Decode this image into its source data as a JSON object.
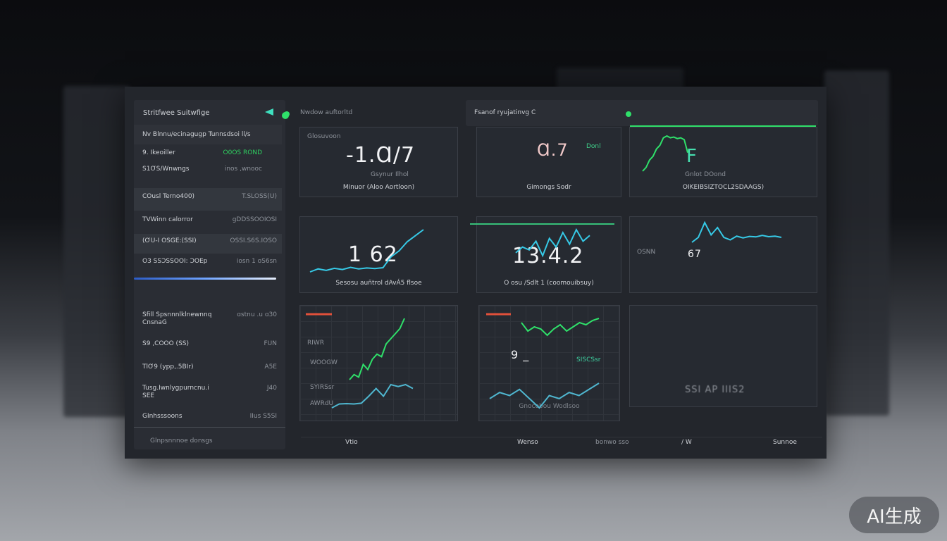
{
  "sidebar": {
    "title": "Stritfwee Suitwfige",
    "rows": [
      {
        "label": "Nv Blnnu/ecinagugp Tunnsdsoi ll/s",
        "value": ""
      },
      {
        "label": "9. Ikeoiller",
        "value": "O0OS ROND"
      },
      {
        "label": "S1ƠS/Wnwngs",
        "value": "inos ,wnooc"
      },
      {
        "label": "COusl Terno400)",
        "value": "T.SLOSS(U)"
      },
      {
        "label": "TVWinn calorror",
        "value": "gDDSSOOIOSI"
      },
      {
        "label": "(ƠU-I OSGE:(SSI)",
        "value": "OSSI.S6S.IOSO"
      },
      {
        "label": "O3 SSƆSSOOI: ƆOEp",
        "value": "iosn 1 oS6sn"
      },
      {
        "label": "Sfill Spsnnnlklnewnnq CnsnaG",
        "value": "ɑstnu .u  ɑ30"
      },
      {
        "label": "S9 ,COOO (SS)",
        "value": "FUN"
      },
      {
        "label": "TlƠ9 (ypp,.5BIr)",
        "value": "A5E"
      },
      {
        "label": "Tusg.Iwnlygpurncnu.i SEE",
        "value": "J40"
      },
      {
        "label": "GInhsssoons",
        "value": "IIus   S5SI"
      }
    ],
    "footer": "Glnpsnnnoe donsgs",
    "progress": 0.95
  },
  "header": {
    "left": "Nwdow auftorltd",
    "mid": "Fsanof ryujatinvg C"
  },
  "cards": [
    {
      "label": "Glosuvoon",
      "value": "-1.Ɑ/7",
      "sub": "Gsynur Ilhol",
      "caption": "Minuor (Aloo Aortloon)"
    },
    {
      "label": "",
      "value": "Ɑ.7",
      "tag": "Donl",
      "caption": "Gimongs Sodr"
    },
    {
      "label": "",
      "value": "F",
      "sub": "Gnlot DOond",
      "caption": "OIKEIBSIZTOCL2SDAAGS)"
    },
    {
      "label": "",
      "value": "1  62",
      "caption": "Sesosu auñtrol dAvÁ5 flsoe"
    },
    {
      "label": "",
      "value": "13.4.2",
      "caption": "O osu /Sdlt 1 (coomouibsuy)"
    },
    {
      "label": "OSNN",
      "value": "67",
      "caption": ""
    },
    {
      "label": "RIWR",
      "value": "",
      "labels": [
        "WOOGW",
        "SYIRSsr",
        "AWRdU"
      ]
    },
    {
      "label": "",
      "value": "9 _",
      "labels": [
        "SISCSsr"
      ],
      "caption": "Gnocobou Wodlsoo"
    },
    {
      "label": "",
      "value": "SSI AP  IIIS2"
    }
  ],
  "footer": [
    "Vtio",
    "Wenso",
    "bonwo  sso",
    "/ W",
    "Sunnoe"
  ],
  "watermark": "AI生成",
  "colors": {
    "accent_green": "#2fe06a",
    "accent_cyan": "#36c9e6",
    "accent_red": "#e0503a",
    "accent_blue": "#3f7ef0"
  },
  "trends": {
    "c3": [
      2,
      3,
      5,
      6,
      8,
      9,
      11,
      11.5,
      11,
      11.2,
      10.8,
      11,
      10.5,
      7
    ],
    "c4": [
      3,
      4,
      3.5,
      4.2,
      3.8,
      4.5,
      4,
      4.3,
      4.1,
      4.4,
      8,
      10,
      13,
      15,
      17
    ],
    "c5": [
      4,
      6,
      5,
      8,
      3,
      9,
      6,
      11,
      7,
      12,
      8,
      10
    ],
    "c6": [
      4,
      6,
      12,
      7,
      10,
      6,
      5,
      6.5,
      5.8,
      6.4,
      6.2,
      6.8,
      6.3,
      6.5,
      6
    ],
    "c7a": [
      2,
      3,
      2.5,
      5,
      4,
      6,
      7,
      6.5,
      9,
      10,
      11,
      12,
      14
    ],
    "c7b": [
      2,
      3,
      3.1,
      3,
      3.2,
      5,
      7,
      5,
      8,
      7.5,
      8,
      7
    ],
    "c8a": [
      9,
      5,
      7,
      6,
      3,
      6,
      8,
      5,
      7,
      9,
      8,
      10,
      11
    ],
    "c8b": [
      4,
      6,
      5,
      7,
      4,
      1,
      5,
      4,
      6,
      5,
      7,
      9
    ]
  }
}
